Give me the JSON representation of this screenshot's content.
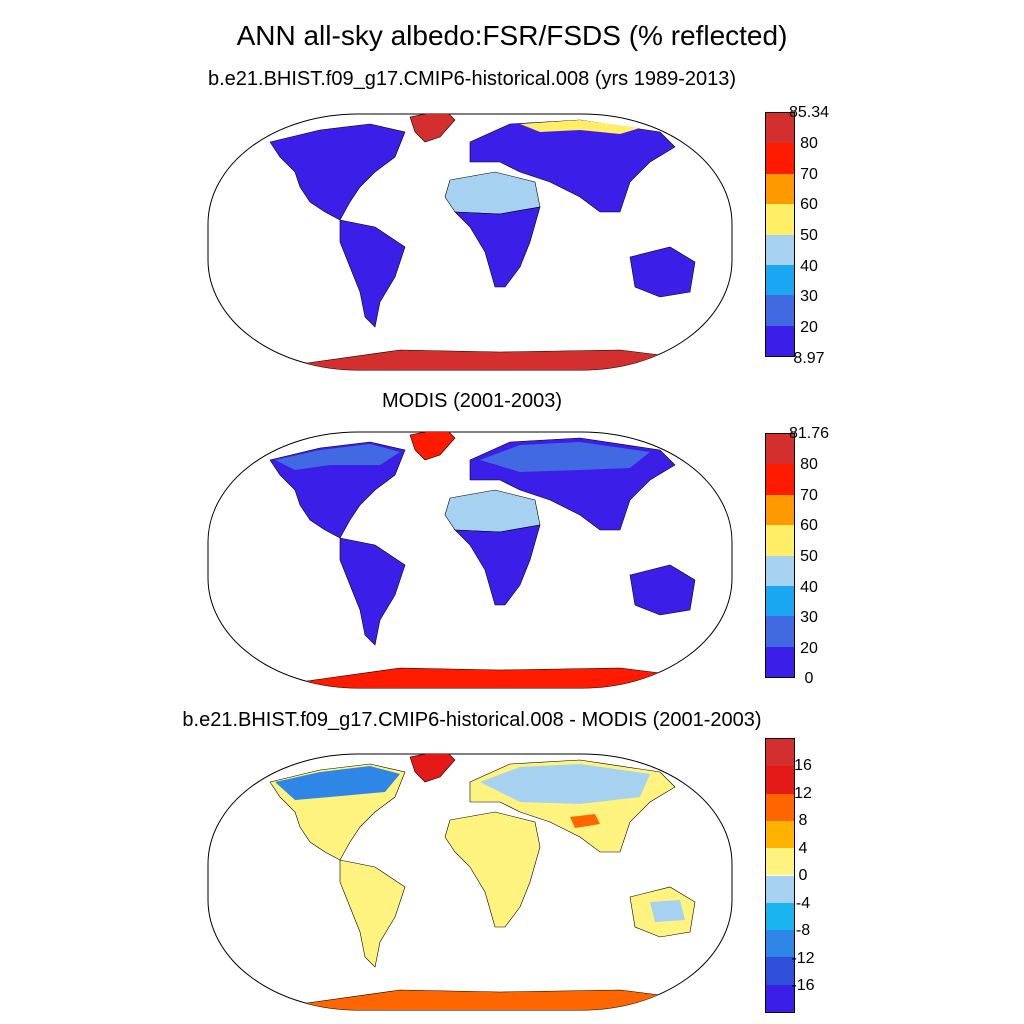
{
  "title": "ANN all-sky albedo:FSR/FSDS (% reflected)",
  "panels": [
    {
      "subtitle": "b.e21.BHIST.f09_g17.CMIP6-historical.008 (yrs 1989-2013)",
      "colorbar": {
        "labels": [
          "85.34",
          "80",
          "70",
          "60",
          "50",
          "40",
          "30",
          "20",
          "8.97"
        ],
        "colors": [
          "#d32f2f",
          "#ff1a00",
          "#ff9900",
          "#ffee66",
          "#a6d1f0",
          "#19a6f2",
          "#4169e1",
          "#3b1fe8"
        ]
      }
    },
    {
      "subtitle": "MODIS (2001-2003)",
      "colorbar": {
        "labels": [
          "81.76",
          "80",
          "70",
          "60",
          "50",
          "40",
          "30",
          "20",
          "0"
        ],
        "colors": [
          "#d32f2f",
          "#ff1a00",
          "#ff9900",
          "#ffee66",
          "#a6d1f0",
          "#19a6f2",
          "#4169e1",
          "#3b1fe8"
        ]
      }
    },
    {
      "subtitle": "b.e21.BHIST.f09_g17.CMIP6-historical.008 - MODIS (2001-2003)",
      "colorbar": {
        "labels": [
          "16",
          "12",
          "8",
          "4",
          "0",
          "-4",
          "-8",
          "-12",
          "-16"
        ],
        "colors": [
          "#d32f2f",
          "#e61919",
          "#ff6600",
          "#ffb300",
          "#fff380",
          "#a6d1f0",
          "#19b3f0",
          "#2e86e6",
          "#2e4fd9",
          "#3b1fe8"
        ]
      }
    }
  ]
}
